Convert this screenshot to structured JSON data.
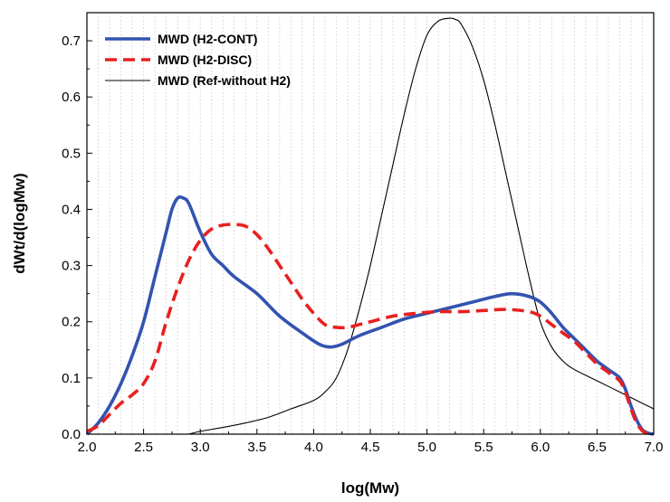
{
  "chart_data": {
    "type": "line",
    "title": "",
    "xlabel": "log(Mw)",
    "ylabel": "dWt/d(logMw)",
    "xlim": [
      2.0,
      7.0
    ],
    "ylim": [
      0.0,
      0.75
    ],
    "xticks": [
      "2.0",
      "2.5",
      "3.0",
      "3.5",
      "4.0",
      "4.5",
      "5.0",
      "5.5",
      "6.0",
      "6.5",
      "7.0"
    ],
    "yticks": [
      "0.0",
      "0.1",
      "0.2",
      "0.3",
      "0.4",
      "0.5",
      "0.6",
      "0.7"
    ],
    "grid": "vertical dotted",
    "legend_position": "top-left",
    "series": [
      {
        "name": "MWD (H2-CONT)",
        "color": "#3353b0",
        "style": "solid-thick",
        "x": [
          2.0,
          2.1,
          2.2,
          2.3,
          2.4,
          2.5,
          2.6,
          2.7,
          2.75,
          2.8,
          2.85,
          2.9,
          3.0,
          3.1,
          3.2,
          3.3,
          3.5,
          3.7,
          3.9,
          4.05,
          4.15,
          4.25,
          4.4,
          4.6,
          4.8,
          5.0,
          5.2,
          5.4,
          5.6,
          5.75,
          5.9,
          6.0,
          6.1,
          6.2,
          6.3,
          6.4,
          6.5,
          6.6,
          6.7,
          6.75,
          6.8,
          6.85,
          6.9,
          6.95,
          7.0
        ],
        "y": [
          0.0,
          0.02,
          0.05,
          0.09,
          0.14,
          0.2,
          0.28,
          0.36,
          0.4,
          0.42,
          0.42,
          0.41,
          0.36,
          0.32,
          0.3,
          0.28,
          0.25,
          0.21,
          0.18,
          0.16,
          0.155,
          0.16,
          0.175,
          0.19,
          0.205,
          0.215,
          0.225,
          0.235,
          0.245,
          0.25,
          0.245,
          0.235,
          0.215,
          0.19,
          0.17,
          0.15,
          0.13,
          0.115,
          0.1,
          0.08,
          0.05,
          0.025,
          0.008,
          0.002,
          0.0
        ]
      },
      {
        "name": "MWD (H2-DISC)",
        "color": "#e82020",
        "style": "dashed",
        "x": [
          2.0,
          2.1,
          2.2,
          2.3,
          2.4,
          2.5,
          2.6,
          2.7,
          2.8,
          2.9,
          3.0,
          3.1,
          3.2,
          3.3,
          3.4,
          3.5,
          3.6,
          3.7,
          3.8,
          3.9,
          4.0,
          4.1,
          4.2,
          4.3,
          4.4,
          4.5,
          4.7,
          4.9,
          5.1,
          5.3,
          5.5,
          5.7,
          5.9,
          6.0,
          6.1,
          6.2,
          6.3,
          6.4,
          6.5,
          6.6,
          6.7,
          6.75,
          6.8,
          6.85,
          6.9,
          6.95,
          7.0
        ],
        "y": [
          0.005,
          0.015,
          0.035,
          0.055,
          0.07,
          0.09,
          0.13,
          0.2,
          0.26,
          0.31,
          0.345,
          0.365,
          0.372,
          0.373,
          0.37,
          0.355,
          0.33,
          0.3,
          0.27,
          0.24,
          0.215,
          0.195,
          0.19,
          0.19,
          0.195,
          0.2,
          0.21,
          0.215,
          0.218,
          0.218,
          0.22,
          0.222,
          0.218,
          0.21,
          0.195,
          0.18,
          0.165,
          0.145,
          0.125,
          0.11,
          0.095,
          0.075,
          0.045,
          0.02,
          0.006,
          0.001,
          0.0
        ]
      },
      {
        "name": "MWD (Ref-without H2)",
        "color": "#000000",
        "style": "solid-thin",
        "x": [
          2.9,
          3.0,
          3.2,
          3.4,
          3.6,
          3.8,
          4.0,
          4.1,
          4.2,
          4.3,
          4.4,
          4.5,
          4.6,
          4.7,
          4.8,
          4.9,
          5.0,
          5.1,
          5.2,
          5.25,
          5.3,
          5.4,
          5.5,
          5.6,
          5.7,
          5.8,
          5.9,
          6.0,
          6.1,
          6.2,
          6.3,
          6.5,
          6.7,
          6.9,
          7.0
        ],
        "y": [
          0.0,
          0.005,
          0.012,
          0.02,
          0.03,
          0.045,
          0.06,
          0.075,
          0.1,
          0.15,
          0.22,
          0.3,
          0.39,
          0.48,
          0.57,
          0.65,
          0.71,
          0.735,
          0.74,
          0.738,
          0.73,
          0.69,
          0.63,
          0.55,
          0.46,
          0.37,
          0.28,
          0.2,
          0.155,
          0.13,
          0.115,
          0.095,
          0.075,
          0.055,
          0.045
        ]
      }
    ]
  }
}
